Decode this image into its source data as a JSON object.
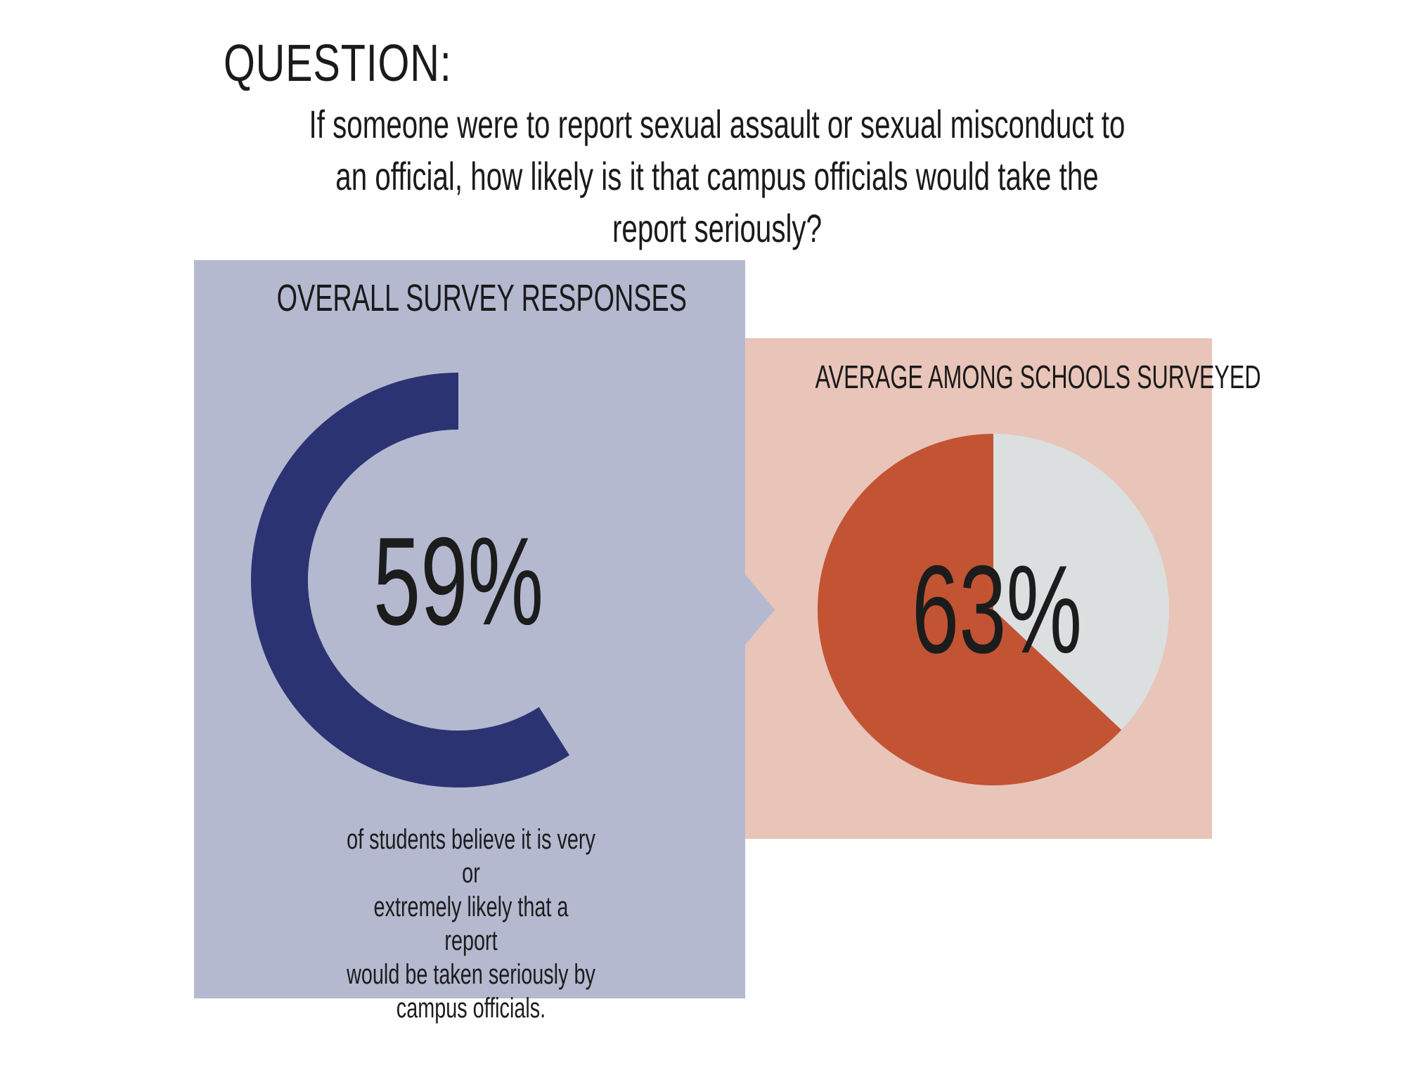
{
  "header": {
    "label": "QUESTION:",
    "question_lines": [
      "If someone were to report sexual assault or sexual misconduct to",
      "an official, how likely is it that campus officials would take the",
      "report seriously?"
    ]
  },
  "chart_data": [
    {
      "type": "pie",
      "style": "donut",
      "title": "OVERALL SURVEY RESPONSES",
      "value_label": "59%",
      "values": [
        59,
        41
      ],
      "colors": [
        "#2c3373",
        "#dcdfdf"
      ],
      "caption_lines": [
        "of students believe it is very or",
        "extremely likely that a report",
        "would be taken seriously by",
        "campus officials."
      ]
    },
    {
      "type": "pie",
      "style": "full",
      "title": "AVERAGE AMONG SCHOOLS SURVEYED",
      "value_label": "63%",
      "values": [
        63,
        37
      ],
      "colors": [
        "#c25434",
        "#dcdfdf"
      ]
    }
  ],
  "colors": {
    "left_panel": "#b4b9d0",
    "right_panel": "#e8c5b8"
  }
}
